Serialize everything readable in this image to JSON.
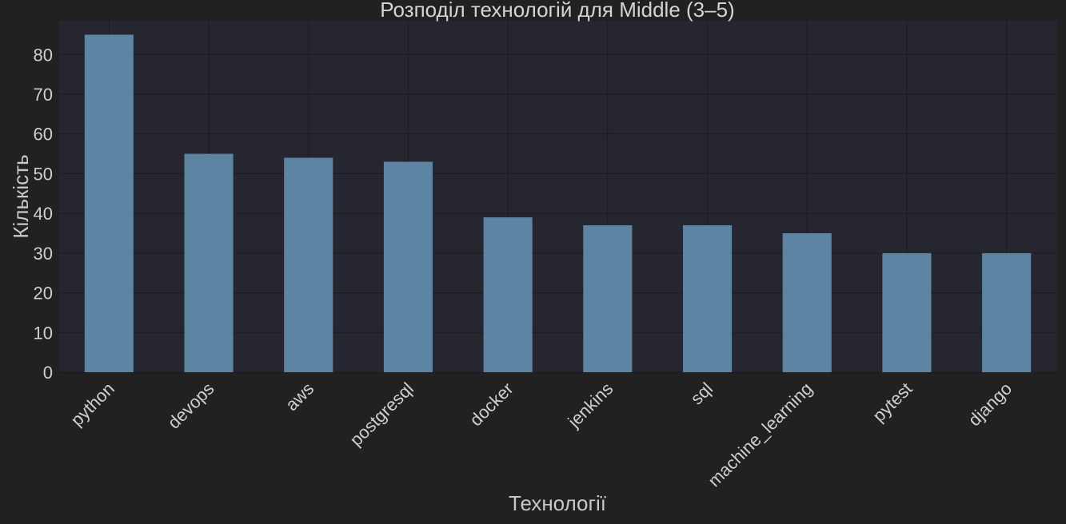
{
  "chart_data": {
    "type": "bar",
    "title": "Розподіл технологій для Middle (3–5)",
    "xlabel": "Технології",
    "ylabel": "Кількість",
    "categories": [
      "python",
      "devops",
      "aws",
      "postgresql",
      "docker",
      "jenkins",
      "sql",
      "machine_learning",
      "pytest",
      "django"
    ],
    "values": [
      85,
      55,
      54,
      53,
      39,
      37,
      37,
      35,
      30,
      30
    ],
    "ylim": [
      0,
      88.5
    ],
    "yticks": [
      0,
      10,
      20,
      30,
      40,
      50,
      60,
      70,
      80
    ],
    "grid": true,
    "legend": "none"
  },
  "colors": {
    "background": "#212121",
    "plot_area": "#262630",
    "bar": "#5d84a2",
    "grid": "#1a1a1f",
    "text": "#cfcfcf"
  }
}
